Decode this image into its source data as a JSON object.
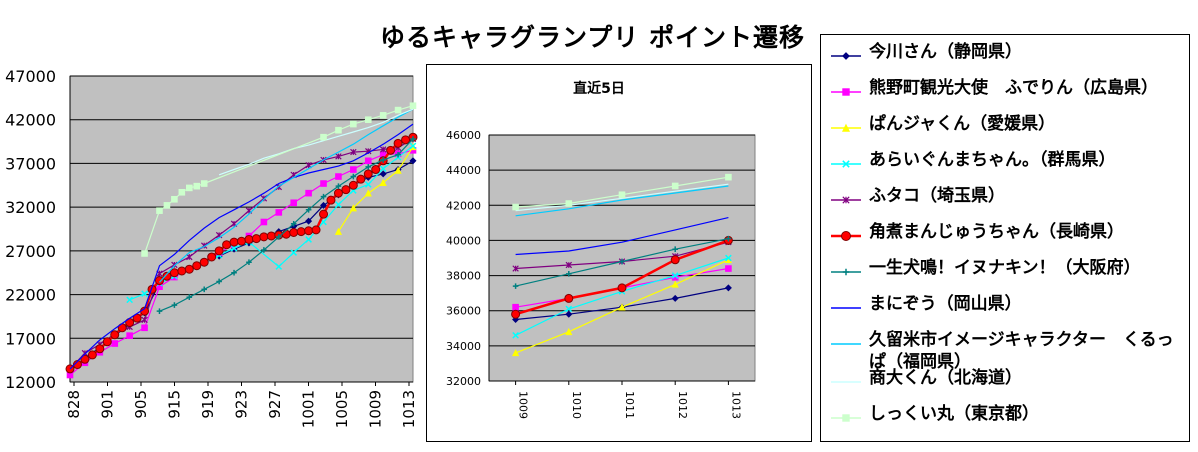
{
  "title": "ゆるキャラグランプリ ポイント遷移",
  "colors": {
    "plot_bg": "#c0c0c0",
    "s0": "#000080",
    "s1": "#ff00ff",
    "s2": "#ffff00",
    "s3": "#00ffff",
    "s4": "#800080",
    "s5": "#ff0000",
    "s6": "#008080",
    "s7": "#0000ff",
    "s8": "#00ccff",
    "s9": "#ccffff",
    "s10": "#ccffcc"
  },
  "legend": [
    {
      "label": "今川さん（静岡県）",
      "marker": "diamond",
      "color": "#000080"
    },
    {
      "label": "熊野町観光大使　ふでりん（広島県）",
      "marker": "square",
      "color": "#ff00ff"
    },
    {
      "label": "ぱんジャくん（愛媛県）",
      "marker": "triangle",
      "color": "#ffff00"
    },
    {
      "label": "あらいぐんまちゃん。（群馬県）",
      "marker": "x",
      "color": "#00ffff"
    },
    {
      "label": "ふタコ（埼玉県）",
      "marker": "star",
      "color": "#800080"
    },
    {
      "label": "角煮まんじゅうちゃん（長崎県）",
      "marker": "circle",
      "color": "#ff0000"
    },
    {
      "label": "一生犬鳴！イヌナキン！（大阪府）",
      "marker": "plus",
      "color": "#008080"
    },
    {
      "label": "まにぞう（岡山県）",
      "marker": "none",
      "color": "#0000ff"
    },
    {
      "label": "久留米市イメージキャラクター　くるっぱ（福岡県）",
      "marker": "none",
      "color": "#00ccff"
    },
    {
      "label": "商大くん（北海道）",
      "marker": "none",
      "color": "#ccffff"
    },
    {
      "label": "しっくい丸（東京都）",
      "marker": "square",
      "color": "#ccffcc"
    }
  ],
  "chart_data": [
    {
      "type": "line",
      "title": "",
      "x_ticks": [
        "828",
        "901",
        "905",
        "915",
        "919",
        "923",
        "927",
        "1001",
        "1005",
        "1009",
        "1013"
      ],
      "x_range": [
        0,
        46
      ],
      "ylim": [
        12000,
        47000
      ],
      "y_ticks": [
        12000,
        17000,
        22000,
        27000,
        32000,
        37000,
        42000,
        47000
      ],
      "grid": true,
      "series": [
        {
          "name": "今川さん（静岡県）",
          "x": [
            0,
            2,
            4,
            6,
            8,
            10,
            12,
            14,
            16,
            18,
            20,
            22,
            24,
            26,
            28,
            30,
            32,
            34,
            36,
            38,
            40,
            42,
            44,
            46
          ],
          "y": [
            13200,
            14800,
            15900,
            17300,
            18600,
            19900,
            23300,
            24100,
            24900,
            25600,
            26400,
            27200,
            27900,
            28500,
            29200,
            29800,
            30400,
            32200,
            33400,
            34500,
            35400,
            35800,
            36300,
            37300
          ]
        },
        {
          "name": "熊野町観光大使　ふでりん（広島県）",
          "x": [
            0,
            2,
            4,
            6,
            8,
            10,
            12,
            14,
            16,
            18,
            20,
            22,
            24,
            26,
            28,
            30,
            32,
            34,
            36,
            38,
            40,
            42,
            44,
            46
          ],
          "y": [
            12800,
            14200,
            15400,
            16400,
            17300,
            18200,
            22900,
            24000,
            24900,
            25700,
            26800,
            27700,
            28700,
            30300,
            31400,
            32500,
            33600,
            34700,
            35500,
            36300,
            37300,
            38000,
            38100,
            38500
          ]
        },
        {
          "name": "ぱんジャくん（愛媛県）",
          "x": [
            36,
            38,
            40,
            42,
            44,
            46
          ],
          "y": [
            29200,
            31900,
            33600,
            34800,
            36200,
            38900
          ]
        },
        {
          "name": "あらいぐんまちゃん。（群馬県）",
          "x": [
            8,
            10,
            12,
            14,
            16,
            18,
            20,
            22,
            24,
            28,
            30,
            32,
            34,
            36,
            38,
            40,
            42,
            44,
            46
          ],
          "y": [
            21400,
            22100,
            23300,
            24100,
            24900,
            25600,
            26500,
            27300,
            28000,
            25200,
            26800,
            28300,
            30300,
            32300,
            33900,
            34600,
            36400,
            37700,
            39000
          ]
        },
        {
          "name": "ふタコ（埼玉県）",
          "x": [
            0,
            2,
            4,
            6,
            8,
            10,
            12,
            14,
            16,
            18,
            20,
            22,
            24,
            26,
            28,
            30,
            32,
            34,
            36,
            38,
            40,
            42,
            44,
            46
          ],
          "y": [
            13500,
            15300,
            16300,
            17500,
            18300,
            19100,
            24400,
            25400,
            26300,
            27600,
            28800,
            30100,
            31600,
            33000,
            34300,
            35700,
            36800,
            37400,
            37800,
            38300,
            38400,
            38600,
            38800,
            39800
          ]
        },
        {
          "name": "角煮まんじゅうちゃん（長崎県）",
          "x": [
            0,
            1,
            2,
            3,
            4,
            5,
            6,
            7,
            8,
            9,
            10,
            11,
            12,
            13,
            14,
            15,
            16,
            17,
            18,
            19,
            20,
            21,
            22,
            23,
            24,
            25,
            26,
            27,
            28,
            29,
            30,
            31,
            32,
            33,
            34,
            35,
            36,
            37,
            38,
            39,
            40,
            41,
            42,
            43,
            44,
            45,
            46
          ],
          "y": [
            13500,
            14000,
            14600,
            15100,
            15800,
            16600,
            17400,
            18200,
            18800,
            19300,
            20100,
            22600,
            23600,
            24100,
            24500,
            24700,
            24900,
            25300,
            25700,
            26300,
            27000,
            27700,
            28000,
            28100,
            28300,
            28400,
            28600,
            28700,
            28800,
            28900,
            29100,
            29200,
            29300,
            29400,
            31200,
            32800,
            33600,
            34000,
            34500,
            35200,
            35800,
            36300,
            37300,
            38500,
            39300,
            39700,
            40000
          ]
        },
        {
          "name": "一生犬鳴！イヌナキン！（大阪府）",
          "x": [
            12,
            14,
            16,
            18,
            20,
            22,
            24,
            26,
            28,
            30,
            32,
            34,
            36,
            38,
            40,
            42,
            44,
            46
          ],
          "y": [
            20100,
            20800,
            21700,
            22600,
            23500,
            24500,
            25700,
            27100,
            28600,
            30100,
            31700,
            33200,
            34400,
            35500,
            36600,
            37400,
            38000,
            39800
          ]
        },
        {
          "name": "まにぞう（岡山県）",
          "x": [
            0,
            2,
            4,
            6,
            8,
            10,
            12,
            14,
            16,
            18,
            20,
            22,
            24,
            26,
            28,
            30,
            32,
            34,
            36,
            38,
            40,
            42,
            44,
            46
          ],
          "y": [
            13500,
            15200,
            16800,
            18100,
            19300,
            20400,
            25300,
            26600,
            28200,
            29600,
            30800,
            31700,
            32600,
            33600,
            34700,
            35400,
            35900,
            36300,
            36700,
            37300,
            38200,
            39200,
            40300,
            41500
          ]
        },
        {
          "name": "久留米市イメージキャラクター　くるっぱ（福岡県）",
          "x": [
            12,
            14,
            16,
            18,
            20,
            22,
            24,
            26,
            28,
            30,
            32,
            34,
            36,
            38,
            40,
            42,
            44,
            46
          ],
          "y": [
            23400,
            25300,
            26800,
            27500,
            28500,
            29700,
            31200,
            32900,
            34400,
            35400,
            36400,
            37400,
            38300,
            39200,
            40300,
            41300,
            42300,
            43200
          ]
        },
        {
          "name": "商大くん（北海道）",
          "x": [
            20,
            22,
            24,
            26,
            28,
            30,
            32,
            34,
            36,
            38,
            40,
            42,
            44,
            46
          ],
          "y": [
            35700,
            36300,
            36900,
            37600,
            38100,
            38700,
            39100,
            39600,
            40100,
            40600,
            41100,
            41700,
            42500,
            43200
          ]
        },
        {
          "name": "しっくい丸（東京都）",
          "x": [
            10,
            12,
            13,
            14,
            15,
            16,
            17,
            18,
            34,
            36,
            38,
            40,
            42,
            44,
            46
          ],
          "y": [
            26700,
            31600,
            32200,
            32900,
            33700,
            34200,
            34400,
            34700,
            40000,
            40800,
            41500,
            42000,
            42500,
            43100,
            43600
          ]
        }
      ]
    },
    {
      "type": "line",
      "title": "直近5日",
      "categories": [
        "1009",
        "1010",
        "1011",
        "1012",
        "1013"
      ],
      "ylim": [
        32000,
        46000
      ],
      "y_ticks": [
        32000,
        34000,
        36000,
        38000,
        40000,
        42000,
        44000,
        46000
      ],
      "grid": true,
      "series": [
        {
          "name": "今川さん（静岡県）",
          "values": [
            35500,
            35800,
            36200,
            36700,
            37300
          ]
        },
        {
          "name": "熊野町観光大使　ふでりん（広島県）",
          "values": [
            36200,
            36700,
            37300,
            37900,
            38400
          ]
        },
        {
          "name": "ぱんジャくん（愛媛県）",
          "values": [
            33600,
            34800,
            36200,
            37500,
            38900
          ]
        },
        {
          "name": "あらいぐんまちゃん。（群馬県）",
          "values": [
            34600,
            36100,
            37100,
            38000,
            39000
          ]
        },
        {
          "name": "ふタコ（埼玉県）",
          "values": [
            38400,
            38600,
            38800,
            39100,
            39900
          ]
        },
        {
          "name": "角煮まんじゅうちゃん（長崎県）",
          "values": [
            35800,
            36700,
            37300,
            38900,
            40000
          ]
        },
        {
          "name": "一生犬鳴！イヌナキン！（大阪府）",
          "values": [
            37400,
            38100,
            38800,
            39500,
            40100
          ]
        },
        {
          "name": "まにぞう（岡山県）",
          "values": [
            39200,
            39400,
            39900,
            40600,
            41300
          ]
        },
        {
          "name": "久留米市イメージキャラクター　くるっぱ（福岡県）",
          "values": [
            41400,
            41800,
            42300,
            42700,
            43100
          ]
        },
        {
          "name": "商大くん（北海道）",
          "values": [
            41700,
            42000,
            42400,
            42800,
            43200
          ]
        },
        {
          "name": "しっくい丸（東京都）",
          "values": [
            41900,
            42100,
            42600,
            43100,
            43600
          ]
        }
      ]
    }
  ]
}
